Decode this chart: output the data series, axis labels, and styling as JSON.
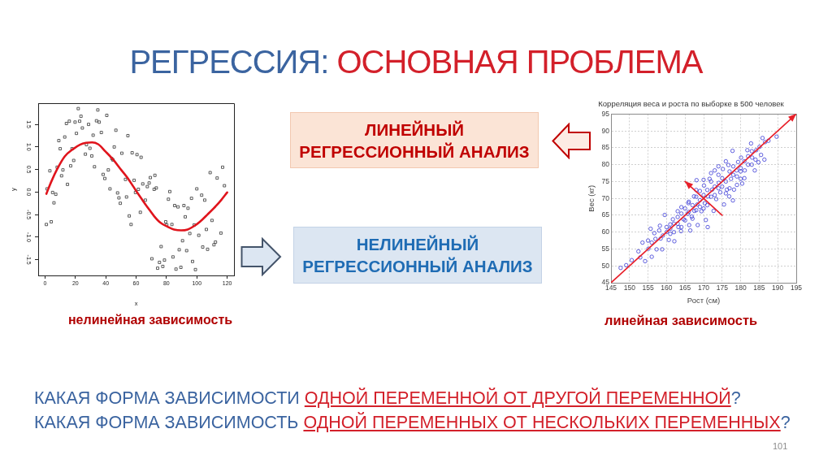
{
  "chart_data": [
    {
      "type": "other",
      "title": "РЕГРЕССИЯ: ОСНОВНАЯ ПРОБЛЕМА",
      "annotations": [
        "ЛИНЕЙНЫЙ РЕГРЕССИОННЫЙ АНАЛИЗ",
        "НЕЛИНЕЙНЫЙ РЕГРЕССИОННЫЙ АНАЛИЗ",
        "КАКАЯ ФОРМА ЗАВИСИМОСТИ",
        "ОДНОЙ ПЕРЕМЕННОЙ ОТ ДРУГОЙ ПЕРЕМЕННОЙ",
        "?",
        "КАКАЯ ФОРМА ЗАВИСИМОСТЬ",
        "ОДНОЙ ПЕРЕМЕННЫХ ОТ НЕСКОЛЬКИХ ПЕРЕМЕННЫХ",
        "?",
        "101"
      ]
    },
    {
      "type": "scatter",
      "xlabel": "x",
      "ylabel": "y",
      "xlim": [
        -4.5,
        124.5
      ],
      "ylim": [
        -1.85,
        1.97
      ],
      "xticks": [
        0,
        20,
        40,
        60,
        80,
        100,
        120
      ],
      "yticks": [
        -1.5,
        {
          "value": -1,
          "label": "-1.0"
        },
        -0.5,
        {
          "value": 0,
          "label": "0.0"
        },
        0.5,
        {
          "value": 1,
          "label": "1.0"
        },
        1.5
      ],
      "marker": "square",
      "series": [
        {
          "color": "#333333",
          "x": [
            0.9,
            1.4,
            3.2,
            4.1,
            5,
            5.9,
            7.1,
            8,
            9.1,
            10,
            10.9,
            11.8,
            13,
            14.1,
            14.8,
            16,
            16.9,
            17.8,
            18.9,
            19.8,
            20.7,
            21.9,
            22.8,
            23.7,
            24.6,
            26.6,
            27.3,
            28.7,
            29.6,
            30.8,
            31.7,
            32.6,
            33.9,
            34.8,
            35.7,
            37.1,
            38.3,
            39.4,
            40.7,
            41.7,
            42.8,
            44,
            44.8,
            45.6,
            46.7,
            47.8,
            48.7,
            49.6,
            50.6,
            53,
            53.7,
            54.6,
            55.5,
            56.7,
            57.4,
            58.7,
            59.6,
            60.6,
            61.5,
            62.8,
            63.3,
            64.4,
            66.1,
            67.4,
            68.6,
            69.4,
            70.4,
            71.9,
            72.4,
            73.3,
            74.2,
            75.4,
            76.5,
            77.6,
            78.7,
            79.5,
            80.2,
            81.3,
            82.2,
            83.6,
            84.3,
            85.4,
            86.3,
            87.6,
            88.4,
            89.5,
            90.6,
            91.5,
            92.4,
            93.3,
            94.2,
            95.4,
            96.5,
            97.2,
            98.3,
            99.1,
            100,
            101.3,
            103.2,
            103.9,
            105.2,
            106.3,
            107.1,
            108.8,
            110,
            111.3,
            112.3,
            113.4,
            115.9,
            117,
            118.2
          ],
          "values": [
            -0.72,
            0.07,
            0.47,
            -0.66,
            -0.01,
            -0.24,
            -0.05,
            0.55,
            1.14,
            0.96,
            0.36,
            0.49,
            1.22,
            1.52,
            0.17,
            1.57,
            0.58,
            0.96,
            0.7,
            1.55,
            1.3,
            1.85,
            1.57,
            1.68,
            1.42,
            0.84,
            1.05,
            1.5,
            0.97,
            0.8,
            1.26,
            0.56,
            1.58,
            1.82,
            1.55,
            1.32,
            0.39,
            0.3,
            1.7,
            0.49,
            0.07,
            0.74,
            0.71,
            1,
            1.37,
            -0.02,
            -0.13,
            -0.25,
            0.86,
            0.28,
            -0.11,
            1.25,
            -0.53,
            -0.72,
            0.87,
            0.26,
            -0.01,
            0.83,
            0.06,
            -0.45,
            0.77,
            0.18,
            -0.18,
            0.12,
            0.2,
            0.32,
            -1.48,
            0.06,
            0.37,
            0.09,
            -1.69,
            -1.56,
            -1.21,
            -1.65,
            -1.51,
            -0.66,
            -0.73,
            -0.16,
            0.01,
            -0.72,
            -1.44,
            -0.3,
            -1.71,
            -0.33,
            -1.28,
            -1.67,
            -1.08,
            -0.3,
            -0.55,
            -1.3,
            -0.36,
            -0.92,
            -0.14,
            -1.54,
            -0.73,
            -1.72,
            0.07,
            -0.96,
            -0.07,
            -1.22,
            -0.18,
            -0.83,
            -1.27,
            0.43,
            -0.63,
            -1.17,
            -1.11,
            0.31,
            -0.91,
            0.55,
            0.14
          ]
        },
        {
          "type": "line",
          "color": "#e0141c",
          "marker": "none",
          "x": [
            0.9,
            4,
            8.2,
            13,
            18.4,
            23,
            27,
            31,
            35,
            39.8,
            45.1,
            49.5,
            54,
            58,
            60.5,
            64,
            68,
            72,
            76,
            80.8,
            85,
            89.7,
            94,
            98,
            102,
            107,
            112.9,
            116,
            120
          ],
          "values": [
            -0.04,
            0.22,
            0.52,
            0.79,
            0.95,
            1.05,
            1.09,
            1.1,
            1.06,
            0.9,
            0.71,
            0.52,
            0.33,
            0.13,
            0,
            -0.17,
            -0.36,
            -0.54,
            -0.68,
            -0.77,
            -0.83,
            -0.85,
            -0.83,
            -0.76,
            -0.66,
            -0.5,
            -0.3,
            -0.18,
            -0.01
          ]
        }
      ],
      "annotations": [
        "нелинейная зависимость"
      ]
    },
    {
      "type": "scatter",
      "title": "Корреляция веса и роста по выборке в 500 человек",
      "xlabel": "Рост (см)",
      "ylabel": "Вес (кг)",
      "xlim": [
        145,
        195
      ],
      "ylim": [
        45,
        95
      ],
      "xticks": [
        145,
        150,
        155,
        160,
        165,
        170,
        175,
        180,
        185,
        190,
        195
      ],
      "yticks": [
        45,
        50,
        55,
        60,
        65,
        70,
        75,
        80,
        85,
        90,
        95
      ],
      "grid": true,
      "marker": "circle",
      "series": [
        {
          "color": "#3a3ad6",
          "x": [
            147.6,
            149.1,
            150.6,
            152.4,
            152.9,
            153.5,
            154.2,
            155.7,
            155.1,
            156,
            156,
            156.7,
            157.3,
            158.2,
            158.4,
            159.5,
            158.8,
            160.1,
            161,
            160.6,
            161.7,
            162.1,
            163,
            163.2,
            163.9,
            164,
            164.6,
            165.7,
            166.1,
            165.9,
            166.8,
            166.4,
            167.4,
            167.5,
            168.1,
            168.3,
            168.4,
            169,
            169.4,
            170.1,
            170.3,
            170.6,
            171.2,
            171.1,
            171.6,
            172.3,
            172.7,
            173,
            173.4,
            174.1,
            174.5,
            175.2,
            175.5,
            176.3,
            176.7,
            176.9,
            177.4,
            177.8,
            177.9,
            178.2,
            178.9,
            179.3,
            180,
            180.1,
            180.4,
            181.1,
            181.8,
            182,
            182.8,
            183.1,
            183.8,
            184.2,
            184.8,
            185.1,
            185.9,
            185.5,
            186.4,
            186.6,
            187.5,
            189.7,
            158,
            160,
            161,
            162,
            163,
            164,
            165,
            166,
            167,
            168,
            169,
            170,
            171,
            172,
            173,
            174,
            175,
            176,
            177,
            178,
            179,
            180,
            181,
            182,
            183,
            184,
            162,
            164,
            166,
            168,
            170,
            172,
            174,
            176,
            178,
            180,
            165,
            167,
            169,
            171,
            173,
            175,
            177,
            179,
            181,
            183,
            163,
            161,
            159,
            157,
            155,
            170,
            172,
            174,
            176,
            168
          ],
          "values": [
            49.4,
            50.2,
            51.7,
            54.3,
            52.5,
            56.9,
            51.4,
            61,
            55.1,
            56.9,
            52.7,
            59.7,
            54.9,
            61.9,
            58.1,
            65.1,
            54.9,
            60.1,
            62.3,
            57.7,
            63.8,
            57.3,
            66.2,
            61.5,
            60.3,
            67.4,
            63.8,
            65.4,
            62.1,
            68.6,
            64.6,
            60.5,
            70.6,
            66.3,
            75.4,
            68.2,
            62.1,
            72.2,
            66.2,
            73.8,
            68.6,
            63.6,
            70.6,
            61.5,
            75.8,
            72.6,
            66.3,
            78.3,
            69.8,
            74.6,
            71.8,
            78.7,
            68.2,
            72.6,
            79.9,
            70.6,
            75.8,
            84.1,
            69.4,
            72.6,
            78.3,
            80.8,
            75.8,
            82.1,
            74.4,
            78.3,
            84.3,
            80,
            86.3,
            82.1,
            78.3,
            84.3,
            80.7,
            85.3,
            87.9,
            82.9,
            81.5,
            86.7,
            87.1,
            88.3,
            60.5,
            61.5,
            59.5,
            60,
            64.5,
            65.5,
            67,
            66,
            68,
            70.5,
            69.5,
            71,
            72.5,
            70.5,
            73.5,
            73,
            76,
            75,
            78,
            77,
            76.5,
            79,
            81,
            82.5,
            80,
            81.5,
            62.5,
            61.5,
            69,
            66.5,
            67,
            75,
            77,
            71.5,
            79.5,
            78,
            63.5,
            64,
            67.5,
            68,
            71,
            73.5,
            73,
            74,
            76,
            84,
            62.5,
            61,
            59,
            58,
            57.5,
            75.5,
            77.5,
            79.5,
            81,
            72.5
          ]
        },
        {
          "type": "line",
          "color": "#e8202a",
          "marker": "none",
          "x": [
            145,
            195
          ],
          "values": [
            45,
            95
          ]
        },
        {
          "type": "line",
          "color": "#e8202a",
          "marker": "none",
          "x": [
            175,
            165
          ],
          "values": [
            65,
            75
          ]
        }
      ],
      "annotations": [
        "линейная зависимость"
      ]
    }
  ]
}
